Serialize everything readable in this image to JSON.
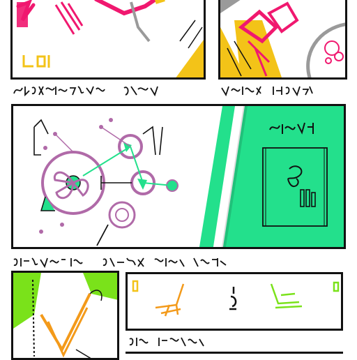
{
  "page": {
    "background": "#ffffff",
    "ink": "#111111",
    "accents": {
      "magenta": "#f0186f",
      "yellow": "#f3c318",
      "green_teal": "#23e08c",
      "lime": "#7ae21a",
      "orange": "#f39a1a",
      "violet": "#b06aa8",
      "gray": "#9a9a9a"
    }
  },
  "panels": [
    {
      "id": "top-left-panel",
      "palette": [
        "#f0186f",
        "#f3c318",
        "#9a9a9a"
      ]
    },
    {
      "id": "top-right-panel",
      "palette": [
        "#f0186f",
        "#f3c318",
        "#b06aa8",
        "#9a9a9a"
      ]
    },
    {
      "id": "middle-panel",
      "palette": [
        "#b06aa8",
        "#23e08c",
        "#111111"
      ]
    },
    {
      "id": "bottom-left-panel",
      "palette": [
        "#7ae21a",
        "#f39a1a",
        "#111111"
      ]
    },
    {
      "id": "bottom-right-panel",
      "palette": [
        "#f39a1a",
        "#7ae21a",
        "#111111"
      ]
    }
  ],
  "icons": [
    "network-node-icon",
    "figure-icon",
    "chair-sketch-icon"
  ]
}
